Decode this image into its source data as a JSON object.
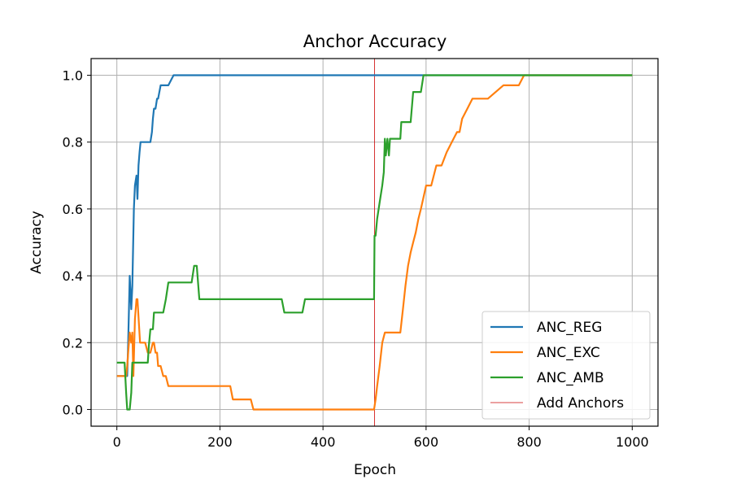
{
  "chart_data": {
    "type": "line",
    "title": "Anchor Accuracy",
    "xlabel": "Epoch",
    "ylabel": "Accuracy",
    "xlim": [
      -50,
      1050
    ],
    "ylim": [
      -0.05,
      1.05
    ],
    "xticks": [
      0,
      200,
      400,
      600,
      800,
      1000
    ],
    "yticks": [
      0.0,
      0.2,
      0.4,
      0.6,
      0.8,
      1.0
    ],
    "xtick_labels": [
      "0",
      "200",
      "400",
      "600",
      "800",
      "1000"
    ],
    "ytick_labels": [
      "0.0",
      "0.2",
      "0.4",
      "0.6",
      "0.8",
      "1.0"
    ],
    "grid": true,
    "legend_position": "lower-right",
    "series": [
      {
        "name": "ANC_REG",
        "color": "#1f77b4",
        "x": [
          0,
          20,
          22,
          25,
          28,
          30,
          33,
          35,
          38,
          40,
          42,
          44,
          46,
          50,
          55,
          60,
          65,
          68,
          70,
          72,
          75,
          78,
          80,
          85,
          90,
          100,
          110,
          120,
          1000
        ],
        "y": [
          0.1,
          0.1,
          0.2,
          0.4,
          0.3,
          0.37,
          0.6,
          0.67,
          0.7,
          0.63,
          0.73,
          0.77,
          0.8,
          0.8,
          0.8,
          0.8,
          0.8,
          0.83,
          0.87,
          0.9,
          0.9,
          0.93,
          0.93,
          0.97,
          0.97,
          0.97,
          1.0,
          1.0,
          1.0
        ]
      },
      {
        "name": "ANC_EXC",
        "color": "#ff7f0e",
        "x": [
          0,
          15,
          18,
          20,
          22,
          25,
          28,
          30,
          32,
          35,
          38,
          40,
          45,
          50,
          55,
          60,
          65,
          70,
          72,
          75,
          78,
          80,
          85,
          90,
          95,
          100,
          105,
          110,
          150,
          220,
          225,
          260,
          265,
          300,
          400,
          499,
          502,
          505,
          510,
          515,
          520,
          530,
          540,
          550,
          555,
          560,
          565,
          570,
          575,
          580,
          585,
          590,
          600,
          610,
          620,
          630,
          640,
          650,
          660,
          665,
          670,
          680,
          690,
          700,
          720,
          750,
          760,
          780,
          790,
          800,
          850,
          1000
        ],
        "y": [
          0.1,
          0.1,
          0.1,
          0.13,
          0.17,
          0.23,
          0.2,
          0.23,
          0.1,
          0.27,
          0.33,
          0.33,
          0.2,
          0.2,
          0.2,
          0.17,
          0.17,
          0.2,
          0.2,
          0.17,
          0.17,
          0.13,
          0.13,
          0.1,
          0.1,
          0.07,
          0.07,
          0.07,
          0.07,
          0.07,
          0.03,
          0.03,
          0.0,
          0.0,
          0.0,
          0.0,
          0.03,
          0.07,
          0.13,
          0.2,
          0.23,
          0.23,
          0.23,
          0.23,
          0.3,
          0.37,
          0.43,
          0.47,
          0.5,
          0.53,
          0.57,
          0.6,
          0.67,
          0.67,
          0.73,
          0.73,
          0.77,
          0.8,
          0.83,
          0.83,
          0.87,
          0.9,
          0.93,
          0.93,
          0.93,
          0.97,
          0.97,
          0.97,
          1.0,
          1.0,
          1.0,
          1.0
        ]
      },
      {
        "name": "ANC_AMB",
        "color": "#2ca02c",
        "x": [
          0,
          10,
          12,
          15,
          18,
          20,
          22,
          25,
          28,
          30,
          32,
          35,
          38,
          40,
          45,
          50,
          55,
          60,
          62,
          65,
          70,
          72,
          75,
          80,
          85,
          90,
          95,
          100,
          110,
          120,
          130,
          140,
          145,
          150,
          155,
          160,
          200,
          250,
          300,
          320,
          325,
          360,
          365,
          400,
          450,
          499,
          500,
          502,
          505,
          510,
          515,
          518,
          520,
          522,
          525,
          528,
          530,
          540,
          550,
          552,
          555,
          570,
          575,
          590,
          595,
          600,
          700,
          800,
          900,
          1000
        ],
        "y": [
          0.14,
          0.14,
          0.14,
          0.14,
          0.05,
          0.0,
          0.0,
          0.0,
          0.05,
          0.14,
          0.14,
          0.14,
          0.14,
          0.14,
          0.14,
          0.14,
          0.14,
          0.14,
          0.19,
          0.24,
          0.24,
          0.29,
          0.29,
          0.29,
          0.29,
          0.29,
          0.33,
          0.38,
          0.38,
          0.38,
          0.38,
          0.38,
          0.38,
          0.43,
          0.43,
          0.33,
          0.33,
          0.33,
          0.33,
          0.33,
          0.29,
          0.29,
          0.33,
          0.33,
          0.33,
          0.33,
          0.52,
          0.52,
          0.57,
          0.62,
          0.67,
          0.71,
          0.81,
          0.76,
          0.81,
          0.76,
          0.81,
          0.81,
          0.81,
          0.86,
          0.86,
          0.86,
          0.95,
          0.95,
          1.0,
          1.0,
          1.0,
          1.0,
          1.0,
          1.0
        ]
      }
    ],
    "vline": {
      "name": "Add Anchors",
      "x": 500,
      "color": "#cc0000"
    }
  }
}
